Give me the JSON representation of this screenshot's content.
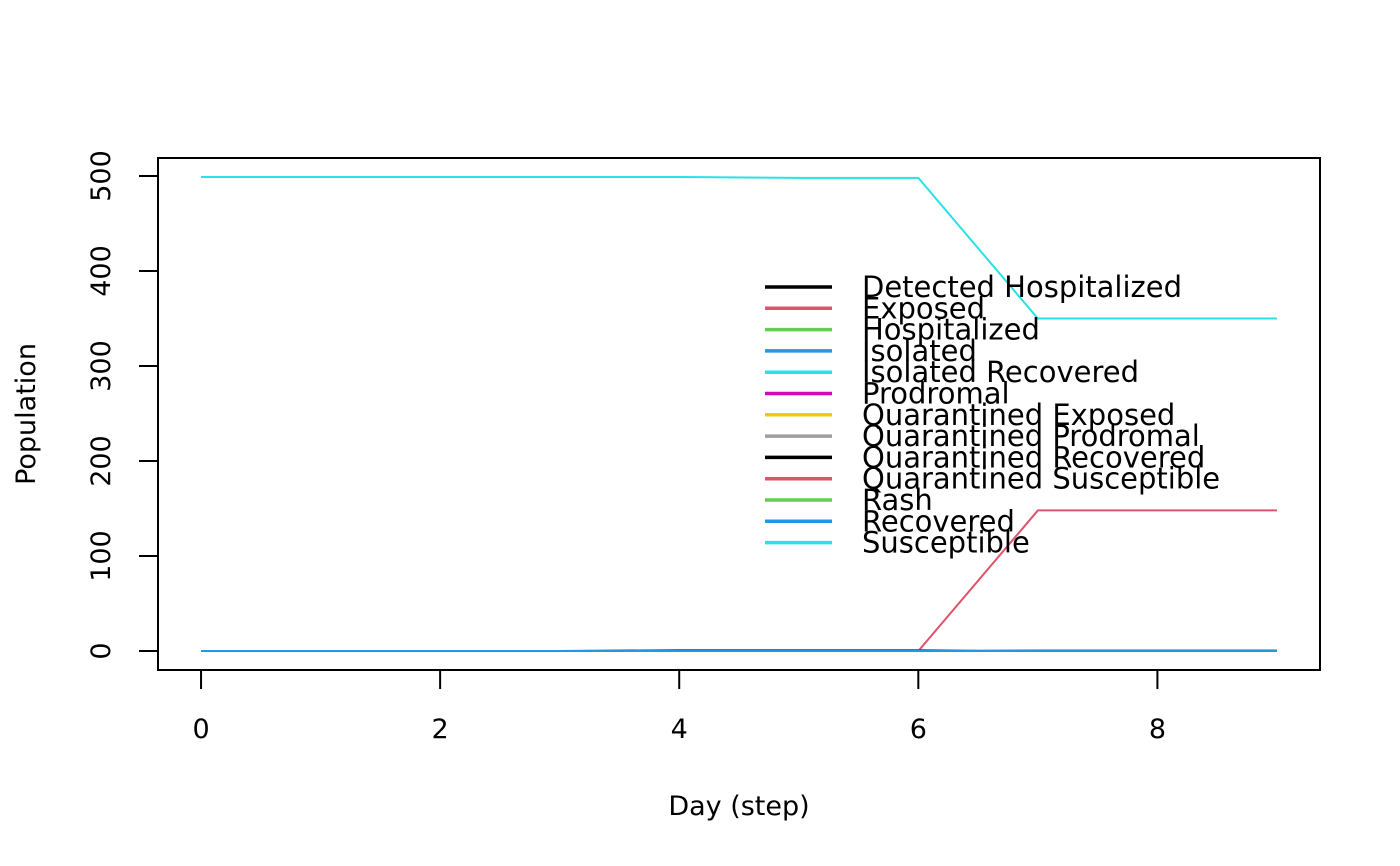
{
  "chart_data": {
    "type": "line",
    "title": "",
    "xlabel": "Day (step)",
    "ylabel": "Population",
    "xlim": [
      -0.36,
      9.36
    ],
    "ylim": [
      -19.96,
      518.96
    ],
    "xticks": [
      0,
      2,
      4,
      6,
      8
    ],
    "yticks": [
      0,
      100,
      200,
      300,
      400,
      500
    ],
    "grid": false,
    "legend_position": "right",
    "x": [
      0,
      1,
      2,
      3,
      4,
      5,
      6,
      7,
      8,
      9
    ],
    "series": [
      {
        "name": "Detected Hospitalized",
        "color": "#000000",
        "values": [
          0,
          0,
          0,
          0,
          0,
          0,
          0,
          0,
          0,
          0
        ]
      },
      {
        "name": "Exposed",
        "color": "#DF536B",
        "values": [
          0,
          0,
          0,
          0,
          0,
          0,
          0,
          148,
          148,
          148
        ]
      },
      {
        "name": "Hospitalized",
        "color": "#61D04F",
        "values": [
          0,
          0,
          0,
          0,
          0,
          0,
          0,
          0,
          0,
          0
        ]
      },
      {
        "name": "Isolated",
        "color": "#2297E6",
        "values": [
          0,
          0,
          0,
          0,
          0,
          0,
          0,
          0,
          0,
          0
        ]
      },
      {
        "name": "Isolated Recovered",
        "color": "#28E2E5",
        "values": [
          0,
          0,
          0,
          0,
          0,
          0,
          0,
          0,
          0,
          0
        ]
      },
      {
        "name": "Prodromal",
        "color": "#CD0BBC",
        "values": [
          0,
          0,
          0,
          0,
          1,
          1,
          1,
          0,
          0,
          0
        ]
      },
      {
        "name": "Quarantined Exposed",
        "color": "#F5C710",
        "values": [
          0,
          0,
          0,
          0,
          0,
          0,
          0,
          0,
          0,
          0
        ]
      },
      {
        "name": "Quarantined Prodromal",
        "color": "#9E9E9E",
        "values": [
          0,
          0,
          0,
          0,
          0,
          0,
          0,
          0,
          0,
          0
        ]
      },
      {
        "name": "Quarantined Recovered",
        "color": "#000000",
        "values": [
          0,
          0,
          0,
          0,
          0,
          0,
          0,
          0,
          0,
          0
        ]
      },
      {
        "name": "Quarantined Susceptible",
        "color": "#DF536B",
        "values": [
          0,
          0,
          0,
          0,
          0,
          0,
          0,
          0,
          0,
          0
        ]
      },
      {
        "name": "Rash",
        "color": "#61D04F",
        "values": [
          0,
          0,
          0,
          0,
          0,
          0,
          0,
          1,
          1,
          1
        ]
      },
      {
        "name": "Recovered",
        "color": "#2297E6",
        "values": [
          0,
          0,
          0,
          0,
          0,
          0,
          0,
          0,
          0,
          0
        ]
      },
      {
        "name": "Susceptible",
        "color": "#28E2E5",
        "values": [
          499,
          499,
          499,
          499,
          499,
          498,
          498,
          350,
          350,
          350
        ]
      }
    ]
  }
}
